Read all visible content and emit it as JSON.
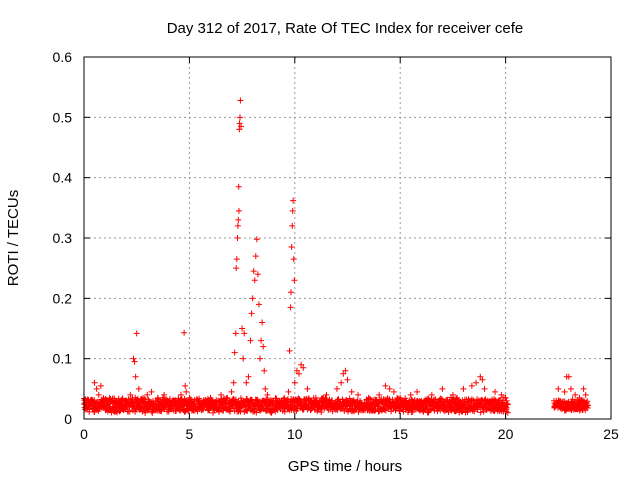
{
  "chart_data": {
    "type": "scatter",
    "title": "Day 312 of 2017, Rate Of TEC Index for receiver cefe",
    "xlabel": "GPS time / hours",
    "ylabel": "ROTI / TECUs",
    "xlim": [
      0,
      25
    ],
    "ylim": [
      0,
      0.6
    ],
    "xticks": [
      0,
      5,
      10,
      15,
      20,
      25
    ],
    "yticks": [
      0,
      0.1,
      0.2,
      0.3,
      0.4,
      0.5,
      0.6
    ],
    "xtick_labels": [
      "0",
      "5",
      "10",
      "15",
      "20",
      "25"
    ],
    "ytick_labels": [
      "0",
      "0.1",
      "0.2",
      "0.3",
      "0.4",
      "0.5",
      "0.6"
    ],
    "grid": true,
    "marker": "plus",
    "color": "#ff0000",
    "points": [
      [
        0.1,
        0.02
      ],
      [
        0.3,
        0.03
      ],
      [
        0.5,
        0.06
      ],
      [
        0.6,
        0.05
      ],
      [
        0.7,
        0.04
      ],
      [
        0.8,
        0.055
      ],
      [
        0.9,
        0.03
      ],
      [
        1.2,
        0.02
      ],
      [
        1.5,
        0.03
      ],
      [
        1.8,
        0.025
      ],
      [
        2.2,
        0.04
      ],
      [
        2.35,
        0.1
      ],
      [
        2.4,
        0.095
      ],
      [
        2.45,
        0.07
      ],
      [
        2.5,
        0.142
      ],
      [
        2.6,
        0.05
      ],
      [
        2.8,
        0.035
      ],
      [
        3.0,
        0.04
      ],
      [
        3.2,
        0.045
      ],
      [
        3.5,
        0.035
      ],
      [
        3.8,
        0.04
      ],
      [
        4.2,
        0.03
      ],
      [
        4.6,
        0.04
      ],
      [
        4.75,
        0.143
      ],
      [
        4.8,
        0.055
      ],
      [
        4.85,
        0.045
      ],
      [
        5.0,
        0.035
      ],
      [
        5.5,
        0.03
      ],
      [
        6.0,
        0.035
      ],
      [
        6.5,
        0.04
      ],
      [
        6.8,
        0.035
      ],
      [
        7.0,
        0.045
      ],
      [
        7.1,
        0.06
      ],
      [
        7.15,
        0.11
      ],
      [
        7.2,
        0.142
      ],
      [
        7.22,
        0.25
      ],
      [
        7.25,
        0.265
      ],
      [
        7.28,
        0.3
      ],
      [
        7.3,
        0.32
      ],
      [
        7.32,
        0.33
      ],
      [
        7.34,
        0.385
      ],
      [
        7.35,
        0.345
      ],
      [
        7.37,
        0.48
      ],
      [
        7.38,
        0.49
      ],
      [
        7.4,
        0.5
      ],
      [
        7.42,
        0.528
      ],
      [
        7.45,
        0.485
      ],
      [
        7.5,
        0.15
      ],
      [
        7.55,
        0.1
      ],
      [
        7.6,
        0.142
      ],
      [
        7.7,
        0.06
      ],
      [
        7.8,
        0.07
      ],
      [
        7.9,
        0.13
      ],
      [
        7.95,
        0.175
      ],
      [
        8.0,
        0.2
      ],
      [
        8.05,
        0.245
      ],
      [
        8.1,
        0.23
      ],
      [
        8.15,
        0.27
      ],
      [
        8.2,
        0.298
      ],
      [
        8.25,
        0.24
      ],
      [
        8.3,
        0.19
      ],
      [
        8.35,
        0.1
      ],
      [
        8.4,
        0.13
      ],
      [
        8.45,
        0.16
      ],
      [
        8.5,
        0.12
      ],
      [
        8.55,
        0.08
      ],
      [
        8.6,
        0.05
      ],
      [
        8.7,
        0.04
      ],
      [
        9.0,
        0.03
      ],
      [
        9.5,
        0.035
      ],
      [
        9.7,
        0.045
      ],
      [
        9.75,
        0.113
      ],
      [
        9.8,
        0.185
      ],
      [
        9.82,
        0.21
      ],
      [
        9.85,
        0.285
      ],
      [
        9.88,
        0.32
      ],
      [
        9.9,
        0.345
      ],
      [
        9.92,
        0.362
      ],
      [
        9.95,
        0.265
      ],
      [
        9.98,
        0.23
      ],
      [
        10.0,
        0.06
      ],
      [
        10.1,
        0.08
      ],
      [
        10.2,
        0.075
      ],
      [
        10.3,
        0.09
      ],
      [
        10.4,
        0.085
      ],
      [
        10.6,
        0.05
      ],
      [
        11.0,
        0.035
      ],
      [
        11.5,
        0.04
      ],
      [
        12.0,
        0.05
      ],
      [
        12.2,
        0.06
      ],
      [
        12.3,
        0.075
      ],
      [
        12.4,
        0.08
      ],
      [
        12.5,
        0.065
      ],
      [
        12.7,
        0.045
      ],
      [
        13.0,
        0.04
      ],
      [
        13.5,
        0.035
      ],
      [
        14.0,
        0.04
      ],
      [
        14.3,
        0.055
      ],
      [
        14.5,
        0.05
      ],
      [
        14.7,
        0.045
      ],
      [
        15.0,
        0.035
      ],
      [
        15.5,
        0.04
      ],
      [
        15.8,
        0.045
      ],
      [
        16.0,
        0.03
      ],
      [
        16.5,
        0.04
      ],
      [
        17.0,
        0.05
      ],
      [
        17.5,
        0.04
      ],
      [
        18.0,
        0.05
      ],
      [
        18.4,
        0.055
      ],
      [
        18.6,
        0.06
      ],
      [
        18.8,
        0.07
      ],
      [
        18.9,
        0.065
      ],
      [
        19.0,
        0.05
      ],
      [
        19.5,
        0.045
      ],
      [
        19.8,
        0.04
      ],
      [
        20.0,
        0.035
      ],
      [
        22.4,
        0.03
      ],
      [
        22.5,
        0.05
      ],
      [
        22.8,
        0.045
      ],
      [
        22.9,
        0.07
      ],
      [
        23.0,
        0.07
      ],
      [
        23.1,
        0.05
      ],
      [
        23.3,
        0.04
      ],
      [
        23.5,
        0.035
      ],
      [
        23.7,
        0.05
      ],
      [
        23.8,
        0.04
      ]
    ],
    "density_segments": [
      {
        "start": 0.0,
        "end": 20.1,
        "base": 0.02,
        "spread": 0.02
      },
      {
        "start": 22.3,
        "end": 23.9,
        "base": 0.02,
        "spread": 0.015
      }
    ]
  }
}
